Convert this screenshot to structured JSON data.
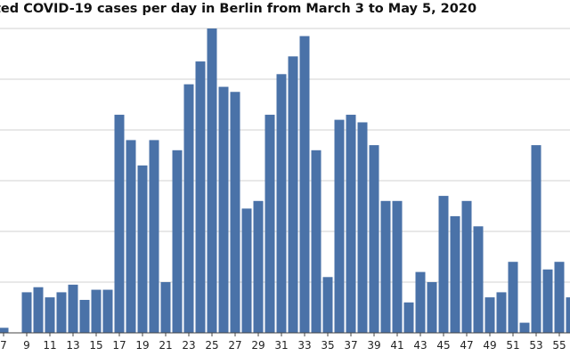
{
  "chart_data": {
    "type": "bar",
    "title": "ted COVID-19 cases per day in Berlin from March 3 to May 5, 2020",
    "xlabel": "",
    "ylabel": "",
    "grid": true,
    "bar_color": "#4a72a8",
    "grid_color": "#d0d0d0",
    "x_start": 7,
    "x_tick_step": 2,
    "ylim": [
      0,
      6.1
    ],
    "values": [
      0.1,
      0,
      0.8,
      0.9,
      0.7,
      0.8,
      0.95,
      0.65,
      0.85,
      0.85,
      4.3,
      3.8,
      3.3,
      3.8,
      1.0,
      3.6,
      4.9,
      5.35,
      6.0,
      4.85,
      4.75,
      2.45,
      2.6,
      4.3,
      5.1,
      5.45,
      5.85,
      3.6,
      1.1,
      4.2,
      4.3,
      4.15,
      3.7,
      2.6,
      2.6,
      0.6,
      1.2,
      1.0,
      2.7,
      2.3,
      2.6,
      2.1,
      0.7,
      0.8,
      1.4,
      0.2,
      3.7,
      1.25,
      1.4,
      0.7
    ],
    "x_tick_labels": [
      "7",
      "9",
      "11",
      "13",
      "15",
      "17",
      "19",
      "21",
      "23",
      "25",
      "27",
      "29",
      "31",
      "33",
      "35",
      "37",
      "39",
      "41",
      "43",
      "45",
      "47",
      "49",
      "51",
      "53",
      "55"
    ]
  }
}
